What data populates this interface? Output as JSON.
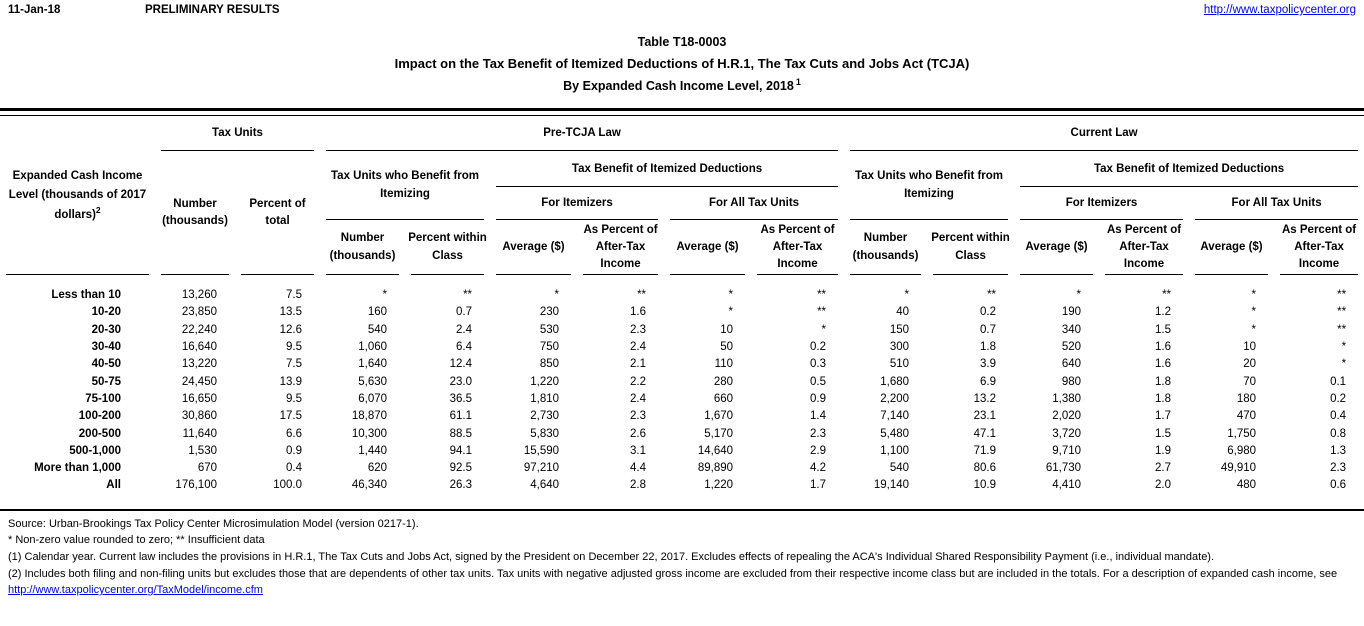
{
  "page": {
    "background": "#ffffff",
    "link_color": "#0000ee"
  },
  "header_bar": {
    "date": "11-Jan-18",
    "status": "PRELIMINARY RESULTS",
    "site_link": "http://www.taxpolicycenter.org"
  },
  "title": {
    "line1": "Table T18-0003",
    "line2": "Impact on the Tax Benefit of Itemized Deductions of H.R.1, The Tax Cuts and Jobs Act (TCJA)",
    "line3": "By Expanded Cash Income Level, 2018",
    "line3_sup": "1"
  },
  "table": {
    "row_label_header": "Expanded Cash Income Level (thousands of 2017 dollars)",
    "row_label_header_sup": "2",
    "groups": {
      "tax_units": "Tax Units",
      "pre_tcja": "Pre-TCJA Law",
      "current_law": "Current Law",
      "benefit_itemizing": "Tax Units who Benefit from Itemizing",
      "tax_benefit": "Tax Benefit of Itemized Deductions",
      "for_itemizers": "For Itemizers",
      "for_all_tax_units": "For All Tax Units"
    },
    "columns": {
      "number_thousands": "Number (thousands)",
      "percent_of_total": "Percent of total",
      "percent_within_class": "Percent within Class",
      "average": "Average ($)",
      "as_percent_after_tax": "As Percent of After-Tax Income"
    },
    "rows": [
      [
        "Less than 10",
        "13,260",
        "7.5",
        "*",
        "**",
        "*",
        "**",
        "*",
        "**",
        "*",
        "**",
        "*",
        "**",
        "*",
        "**"
      ],
      [
        "10-20",
        "23,850",
        "13.5",
        "160",
        "0.7",
        "230",
        "1.6",
        "*",
        "**",
        "40",
        "0.2",
        "190",
        "1.2",
        "*",
        "**"
      ],
      [
        "20-30",
        "22,240",
        "12.6",
        "540",
        "2.4",
        "530",
        "2.3",
        "10",
        "*",
        "150",
        "0.7",
        "340",
        "1.5",
        "*",
        "**"
      ],
      [
        "30-40",
        "16,640",
        "9.5",
        "1,060",
        "6.4",
        "750",
        "2.4",
        "50",
        "0.2",
        "300",
        "1.8",
        "520",
        "1.6",
        "10",
        "*"
      ],
      [
        "40-50",
        "13,220",
        "7.5",
        "1,640",
        "12.4",
        "850",
        "2.1",
        "110",
        "0.3",
        "510",
        "3.9",
        "640",
        "1.6",
        "20",
        "*"
      ],
      [
        "50-75",
        "24,450",
        "13.9",
        "5,630",
        "23.0",
        "1,220",
        "2.2",
        "280",
        "0.5",
        "1,680",
        "6.9",
        "980",
        "1.8",
        "70",
        "0.1"
      ],
      [
        "75-100",
        "16,650",
        "9.5",
        "6,070",
        "36.5",
        "1,810",
        "2.4",
        "660",
        "0.9",
        "2,200",
        "13.2",
        "1,380",
        "1.8",
        "180",
        "0.2"
      ],
      [
        "100-200",
        "30,860",
        "17.5",
        "18,870",
        "61.1",
        "2,730",
        "2.3",
        "1,670",
        "1.4",
        "7,140",
        "23.1",
        "2,020",
        "1.7",
        "470",
        "0.4"
      ],
      [
        "200-500",
        "11,640",
        "6.6",
        "10,300",
        "88.5",
        "5,830",
        "2.6",
        "5,170",
        "2.3",
        "5,480",
        "47.1",
        "3,720",
        "1.5",
        "1,750",
        "0.8"
      ],
      [
        "500-1,000",
        "1,530",
        "0.9",
        "1,440",
        "94.1",
        "15,590",
        "3.1",
        "14,640",
        "2.9",
        "1,100",
        "71.9",
        "9,710",
        "1.9",
        "6,980",
        "1.3"
      ],
      [
        "More than 1,000",
        "670",
        "0.4",
        "620",
        "92.5",
        "97,210",
        "4.4",
        "89,890",
        "4.2",
        "540",
        "80.6",
        "61,730",
        "2.7",
        "49,910",
        "2.3"
      ],
      [
        "All",
        "176,100",
        "100.0",
        "46,340",
        "26.3",
        "4,640",
        "2.8",
        "1,220",
        "1.7",
        "19,140",
        "10.9",
        "4,410",
        "2.0",
        "480",
        "0.6"
      ]
    ]
  },
  "footnotes": {
    "source": "Source: Urban-Brookings Tax Policy Center Microsimulation Model (version 0217-1).",
    "symbols": "* Non-zero value rounded to zero; ** Insufficient data",
    "note1": "(1) Calendar year. Current law includes the provisions in H.R.1, The Tax Cuts and Jobs Act, signed by the President on December 22, 2017. Excludes effects of repealing the ACA's Individual Shared Responsibility Payment (i.e., individual mandate).",
    "note2": "(2) Includes both filing and non-filing units but excludes those that are dependents of other tax units. Tax units with negative adjusted gross income are excluded from their respective income class but are included in the totals. For a description of expanded cash income, see",
    "model_link": "http://www.taxpolicycenter.org/TaxModel/income.cfm"
  }
}
